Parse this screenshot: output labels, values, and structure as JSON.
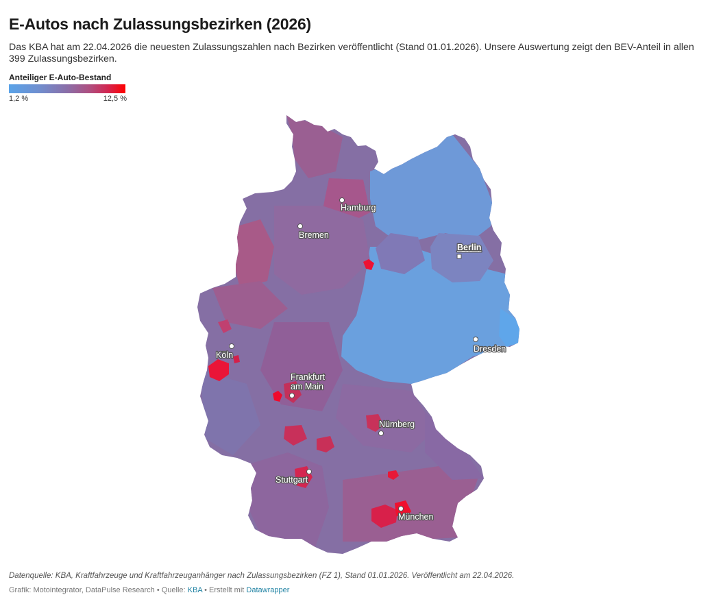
{
  "header": {
    "title": "E-Autos nach Zulassungsbezirken (2026)",
    "description": "Das KBA hat am 22.04.2026 die neuesten Zulassungszahlen nach Bezirken veröffentlicht (Stand 01.01.2026). Unsere Auswertung zeigt den BEV-Anteil in allen 399 Zulassungsbezirken."
  },
  "legend": {
    "title": "Anteiliger E-Auto-Bestand",
    "min_label": "1,2 %",
    "max_label": "12,5 %",
    "min_value": 1.2,
    "max_value": 12.5,
    "colors": [
      "#5aa3e8",
      "#6f8fd0",
      "#8a6ea8",
      "#b04d7e",
      "#d22650",
      "#ff0000"
    ]
  },
  "map": {
    "cities": [
      {
        "name": "Hamburg",
        "marker": "circle",
        "capital": false
      },
      {
        "name": "Bremen",
        "marker": "circle",
        "capital": false
      },
      {
        "name": "Berlin",
        "marker": "square",
        "capital": true
      },
      {
        "name": "Dresden",
        "marker": "circle",
        "capital": false
      },
      {
        "name": "Köln",
        "marker": "circle",
        "capital": false
      },
      {
        "name": "Frankfurt",
        "name_line2": "am Main",
        "marker": "circle",
        "capital": false
      },
      {
        "name": "Nürnberg",
        "marker": "circle",
        "capital": false
      },
      {
        "name": "Stuttgart",
        "marker": "circle",
        "capital": false
      },
      {
        "name": "München",
        "marker": "circle",
        "capital": false
      }
    ]
  },
  "footer": {
    "source_note": "Datenquelle: KBA, Kraftfahrzeuge und Kraftfahrzeuganhänger nach Zulassungsbezirken (FZ 1), Stand 01.01.2026. Veröffentlicht am 22.04.2026.",
    "credit_prefix": "Grafik: Motointegrator, DataPulse Research • Quelle: ",
    "credit_source_link": "KBA",
    "credit_middle": " • Erstellt mit ",
    "credit_tool_link": "Datawrapper"
  }
}
